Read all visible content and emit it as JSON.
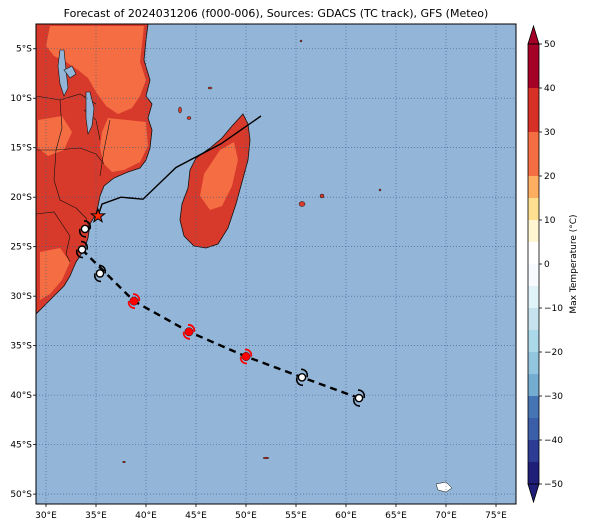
{
  "title": "Forecast of 2024031206 (f000-006), Sources: GDACS (TC track), GFS (Meteo)",
  "map": {
    "lon_range": [
      29,
      77
    ],
    "lat_range": [
      -51,
      -2.5
    ],
    "x_ticks": [
      {
        "value": 30,
        "label": "30°E"
      },
      {
        "value": 35,
        "label": "35°E"
      },
      {
        "value": 40,
        "label": "40°E"
      },
      {
        "value": 45,
        "label": "45°E"
      },
      {
        "value": 50,
        "label": "50°E"
      },
      {
        "value": 55,
        "label": "55°E"
      },
      {
        "value": 60,
        "label": "60°E"
      },
      {
        "value": 65,
        "label": "65°E"
      },
      {
        "value": 70,
        "label": "70°E"
      },
      {
        "value": 75,
        "label": "75°E"
      }
    ],
    "y_ticks": [
      {
        "value": -5,
        "label": "5°S"
      },
      {
        "value": -10,
        "label": "10°S"
      },
      {
        "value": -15,
        "label": "15°S"
      },
      {
        "value": -20,
        "label": "20°S"
      },
      {
        "value": -25,
        "label": "25°S"
      },
      {
        "value": -30,
        "label": "30°S"
      },
      {
        "value": -35,
        "label": "35°S"
      },
      {
        "value": -40,
        "label": "40°S"
      },
      {
        "value": -45,
        "label": "45°S"
      },
      {
        "value": -50,
        "label": "50°S"
      }
    ],
    "grid": true,
    "colors": {
      "ocean": "#93b5d8",
      "land_hot": "#d73a2a",
      "land_warm": "#f46d43",
      "land_mild": "#fdae61"
    }
  },
  "track": {
    "past_track": [
      [
        51.5,
        -11.8
      ],
      [
        47.5,
        -14.6
      ],
      [
        43.0,
        -17.0
      ],
      [
        39.7,
        -20.2
      ],
      [
        37.5,
        -20.0
      ],
      [
        35.6,
        -20.7
      ],
      [
        35.2,
        -21.9
      ]
    ],
    "landfall_point": [
      35.2,
      -21.9
    ],
    "forecast_track": [
      [
        33.6,
        -25.3
      ],
      [
        38.8,
        -30.5
      ],
      [
        44.3,
        -33.6
      ],
      [
        50.0,
        -36.1
      ],
      [
        55.6,
        -38.2
      ],
      [
        61.3,
        -40.3
      ]
    ],
    "symbols": [
      {
        "lon": 33.9,
        "lat": -23.2,
        "type": "low",
        "color": "#000000"
      },
      {
        "lon": 33.6,
        "lat": -25.3,
        "type": "low",
        "color": "#000000"
      },
      {
        "lon": 35.4,
        "lat": -27.7,
        "type": "low",
        "color": "#000000"
      },
      {
        "lon": 38.8,
        "lat": -30.5,
        "type": "storm",
        "color": "#ff0000"
      },
      {
        "lon": 44.3,
        "lat": -33.6,
        "type": "storm",
        "color": "#ff0000"
      },
      {
        "lon": 50.0,
        "lat": -36.1,
        "type": "storm",
        "color": "#ff0000"
      },
      {
        "lon": 55.6,
        "lat": -38.2,
        "type": "low",
        "color": "#000000"
      },
      {
        "lon": 61.3,
        "lat": -40.3,
        "type": "low",
        "color": "#000000"
      }
    ]
  },
  "colorbar": {
    "label": "Max Temperature (°C)",
    "min": -50,
    "max": 50,
    "ticks": [
      {
        "value": 50,
        "label": "50"
      },
      {
        "value": 40,
        "label": "40"
      },
      {
        "value": 30,
        "label": "30"
      },
      {
        "value": 20,
        "label": "20"
      },
      {
        "value": 10,
        "label": "10"
      },
      {
        "value": 0,
        "label": "0"
      },
      {
        "value": -10,
        "label": "−10"
      },
      {
        "value": -20,
        "label": "−20"
      },
      {
        "value": -30,
        "label": "−30"
      },
      {
        "value": -40,
        "label": "−40"
      },
      {
        "value": -50,
        "label": "−50"
      }
    ],
    "bands": [
      {
        "from": 45,
        "to": 50,
        "color": "#a50026"
      },
      {
        "from": 40,
        "to": 45,
        "color": "#a50026"
      },
      {
        "from": 35,
        "to": 40,
        "color": "#d73027"
      },
      {
        "from": 30,
        "to": 35,
        "color": "#d73027"
      },
      {
        "from": 25,
        "to": 30,
        "color": "#f46d43"
      },
      {
        "from": 20,
        "to": 25,
        "color": "#f46d43"
      },
      {
        "from": 15,
        "to": 20,
        "color": "#fdae61"
      },
      {
        "from": 10,
        "to": 15,
        "color": "#fee090"
      },
      {
        "from": 5,
        "to": 10,
        "color": "#fff5d0"
      },
      {
        "from": 0,
        "to": 5,
        "color": "#ffffff"
      },
      {
        "from": -5,
        "to": 0,
        "color": "#f7fbff"
      },
      {
        "from": -10,
        "to": -5,
        "color": "#e0f3f8"
      },
      {
        "from": -15,
        "to": -10,
        "color": "#c6e2ef"
      },
      {
        "from": -20,
        "to": -15,
        "color": "#abd9e9"
      },
      {
        "from": -25,
        "to": -20,
        "color": "#92c5de"
      },
      {
        "from": -30,
        "to": -25,
        "color": "#74add1"
      },
      {
        "from": -35,
        "to": -30,
        "color": "#4575b4"
      },
      {
        "from": -40,
        "to": -35,
        "color": "#3b5ea8"
      },
      {
        "from": -45,
        "to": -40,
        "color": "#2c3b93"
      },
      {
        "from": -50,
        "to": -45,
        "color": "#1f1f7a"
      }
    ]
  }
}
